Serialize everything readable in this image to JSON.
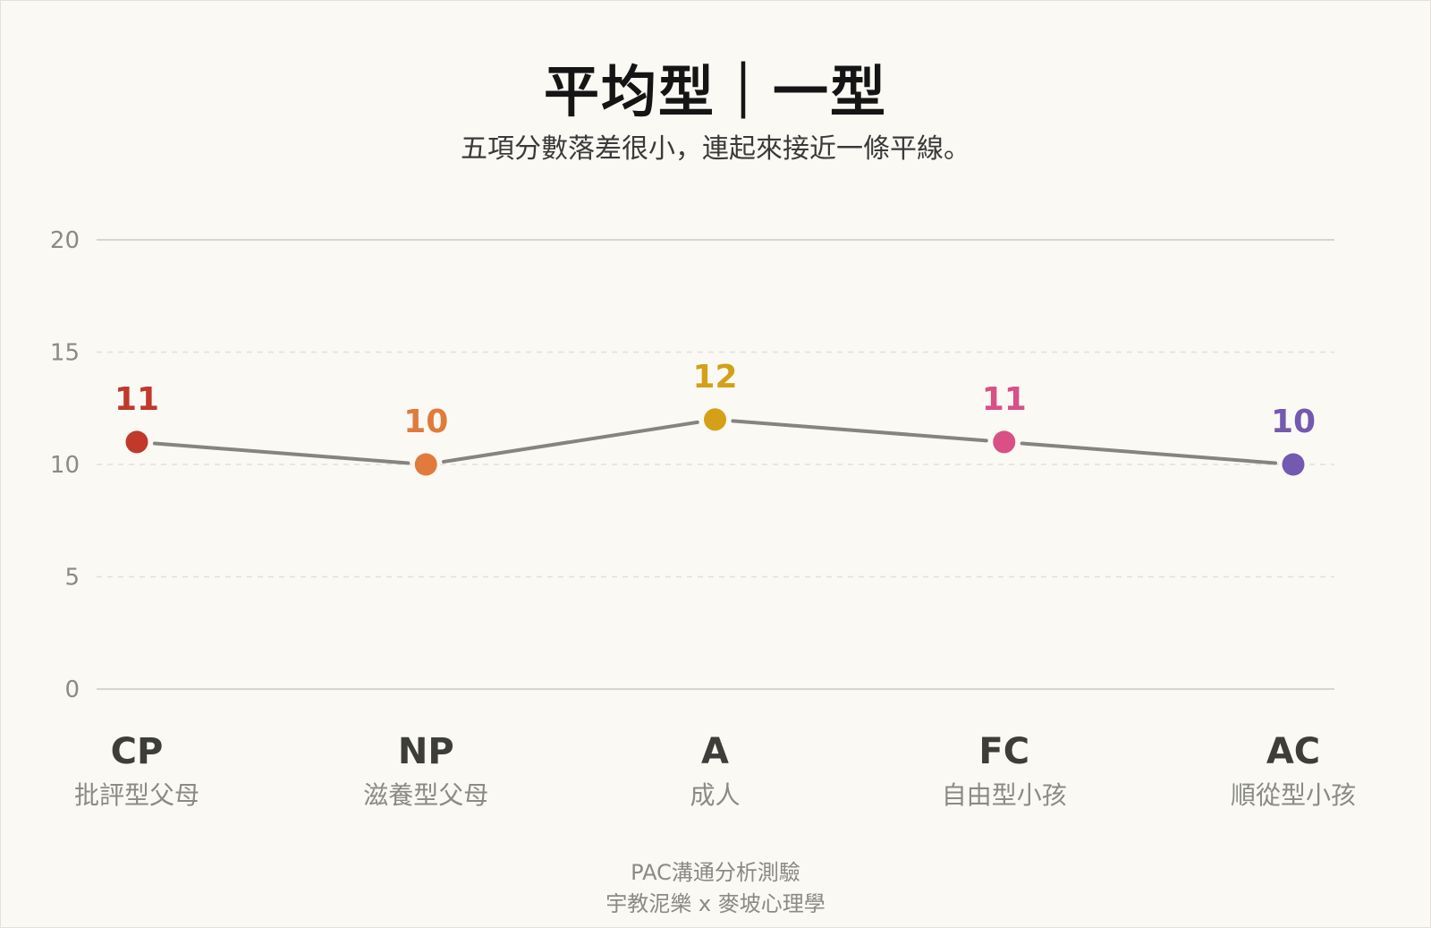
{
  "title": "平均型｜一型",
  "subtitle": "五項分數落差很小，連起來接近一條平線。",
  "footer": {
    "line1": "PAC溝通分析測驗",
    "line2": "宇教泥樂 x 麥坡心理學"
  },
  "chart_data": {
    "type": "line",
    "ylim": [
      0,
      20
    ],
    "y_ticks": [
      "0",
      "5",
      "10",
      "15",
      "20"
    ],
    "categories": [
      "CP",
      "NP",
      "A",
      "FC",
      "AC"
    ],
    "category_sublabels": [
      "批評型父母",
      "滋養型父母",
      "成人",
      "自由型小孩",
      "順從型小孩"
    ],
    "values": [
      11,
      10,
      12,
      11,
      10
    ],
    "point_colors": [
      "#c0392b",
      "#e07b3c",
      "#d4a017",
      "#d94f86",
      "#7459b0"
    ],
    "line_color": "#86847e",
    "grid": true
  }
}
